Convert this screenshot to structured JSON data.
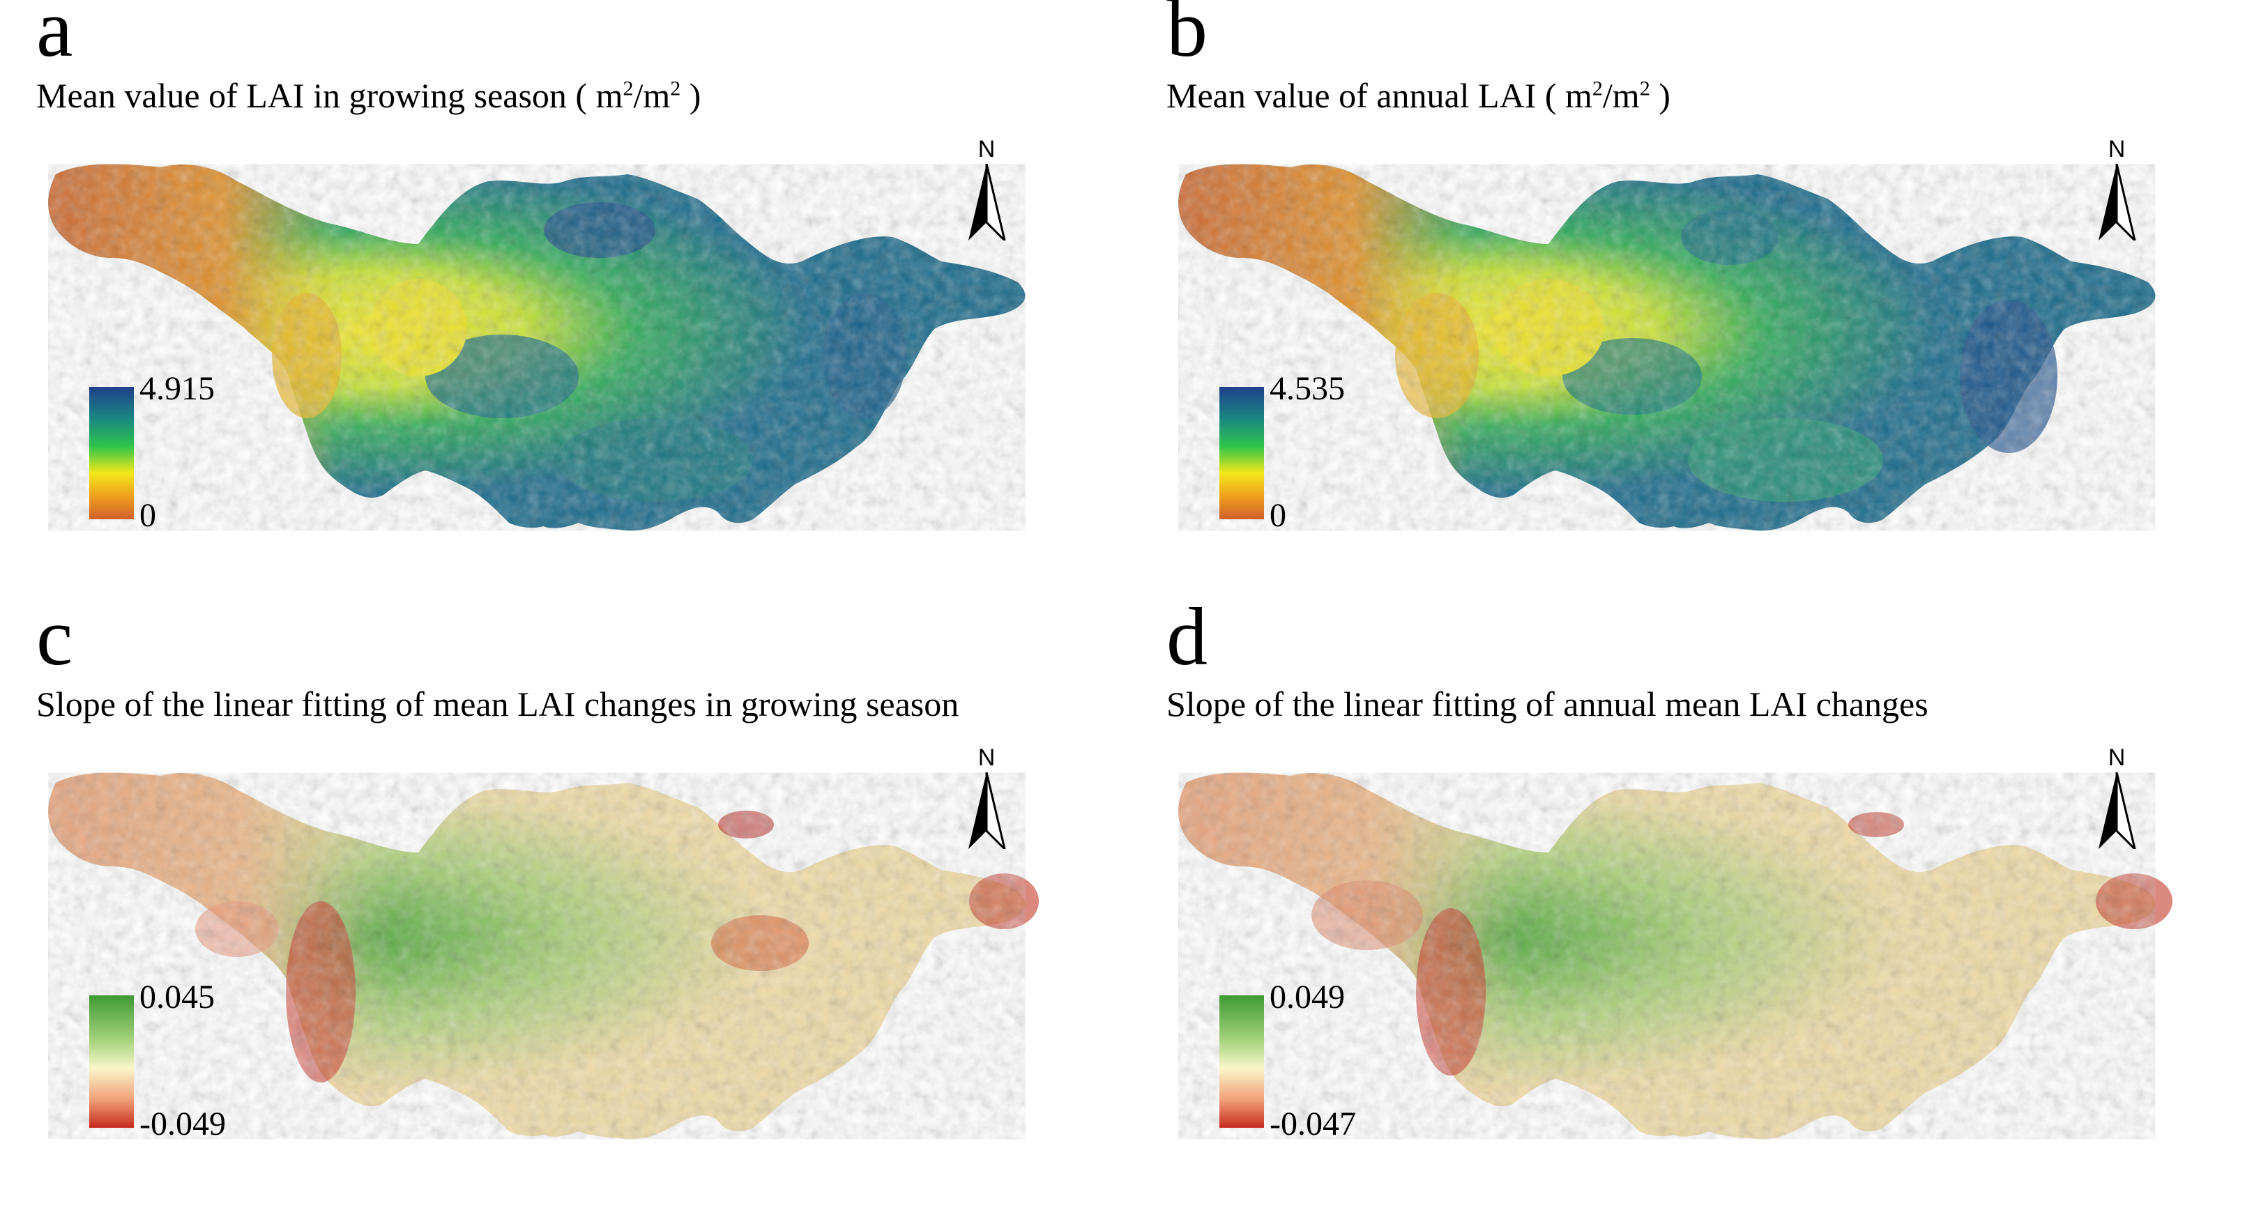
{
  "panels": [
    {
      "letter": "a",
      "title_pre": "Mean value of LAI in growing season ( m",
      "title_mid": "/m",
      "title_post": " )",
      "sup": "2",
      "legend_max": "4.915",
      "legend_min": "0",
      "north": "N"
    },
    {
      "letter": "b",
      "title_pre": "Mean value of annual LAI ( m",
      "title_mid": "/m",
      "title_post": " )",
      "sup": "2",
      "legend_max": "4.535",
      "legend_min": "0",
      "north": "N"
    },
    {
      "letter": "c",
      "title": "Slope of the linear fitting of mean LAI changes in growing season",
      "legend_max": "0.045",
      "legend_min": "-0.049",
      "north": "N"
    },
    {
      "letter": "d",
      "title": "Slope of the linear fitting of annual mean LAI changes",
      "legend_max": "0.049",
      "legend_min": "-0.047",
      "north": "N"
    }
  ],
  "colors": {
    "lai_high": "#1f3f8c",
    "lai_mid": "#2fc44a",
    "lai_low": "#d0602b",
    "slope_high": "#3e9a32",
    "slope_mid": "#faf6c8",
    "slope_low": "#c72a1e"
  }
}
